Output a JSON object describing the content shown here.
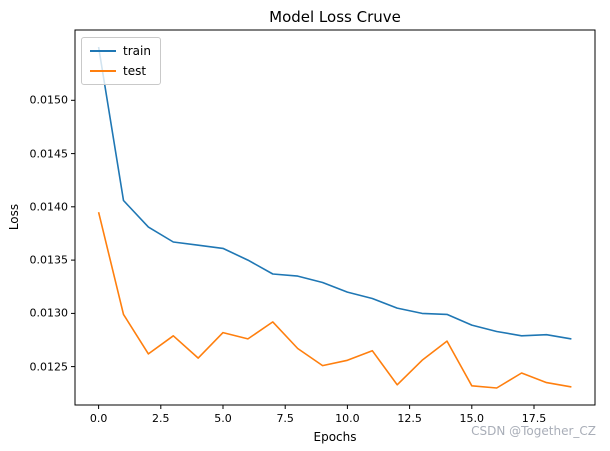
{
  "watermark": "CSDN @Together_CZ",
  "chart_data": {
    "type": "line",
    "title": "Model Loss Cruve",
    "xlabel": "Epochs",
    "ylabel": "Loss",
    "grid": false,
    "legend_position": "upper left",
    "xlim": [
      -0.95,
      19.95
    ],
    "ylim": [
      0.01214,
      0.01566
    ],
    "xticks": [
      0.0,
      2.5,
      5.0,
      7.5,
      10.0,
      12.5,
      15.0,
      17.5
    ],
    "xtick_labels": [
      "0.0",
      "2.5",
      "5.0",
      "7.5",
      "10.0",
      "12.5",
      "15.0",
      "17.5"
    ],
    "yticks": [
      0.0125,
      0.013,
      0.0135,
      0.014,
      0.0145,
      0.015
    ],
    "ytick_labels": [
      "0.0125",
      "0.0130",
      "0.0135",
      "0.0140",
      "0.0145",
      "0.0150"
    ],
    "x": [
      0,
      1,
      2,
      3,
      4,
      5,
      6,
      7,
      8,
      9,
      10,
      11,
      12,
      13,
      14,
      15,
      16,
      17,
      18,
      19
    ],
    "series": [
      {
        "name": "train",
        "color": "#1f77b4",
        "values": [
          0.0155,
          0.01406,
          0.01381,
          0.01367,
          0.01364,
          0.01361,
          0.0135,
          0.01337,
          0.01335,
          0.01329,
          0.0132,
          0.01314,
          0.01305,
          0.013,
          0.01299,
          0.01289,
          0.01283,
          0.01279,
          0.0128,
          0.01276
        ]
      },
      {
        "name": "test",
        "color": "#ff7f0e",
        "values": [
          0.01395,
          0.01299,
          0.01262,
          0.01279,
          0.01258,
          0.01282,
          0.01276,
          0.01292,
          0.01267,
          0.01251,
          0.01256,
          0.01265,
          0.01233,
          0.01256,
          0.01274,
          0.01232,
          0.0123,
          0.01244,
          0.01235,
          0.01231
        ]
      }
    ]
  }
}
